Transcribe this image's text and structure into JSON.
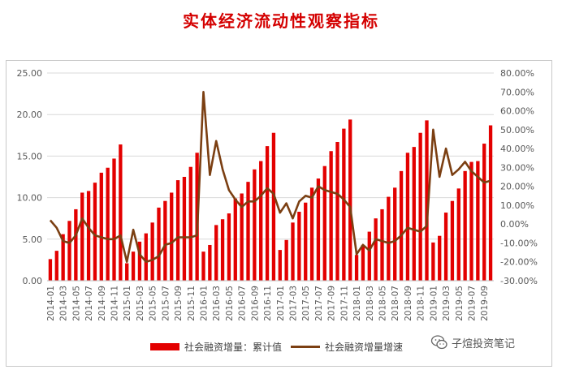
{
  "page": {
    "title": "实体经济流动性观察指标"
  },
  "watermark": {
    "text": "子煊投资笔记",
    "icon": "wechat-icon"
  },
  "colors": {
    "bar": "#e30000",
    "line": "#7b3f12",
    "title": "#d40000",
    "grid": "#d9d9d9",
    "axis_text": "#595959"
  },
  "chart_data": {
    "type": "bar",
    "legend": {
      "placement": "bottom",
      "bar_label": "社会融资增量：累计值",
      "line_label": "社会融资增量增速"
    },
    "grid": true,
    "y_left": {
      "lim": [
        0,
        25
      ],
      "ticks": [
        "0.00",
        "5.00",
        "10.00",
        "15.00",
        "20.00",
        "25.00"
      ]
    },
    "y_right": {
      "lim": [
        -30,
        80
      ],
      "ticks": [
        "-30.00%",
        "-20.00%",
        "-10.00%",
        "0.00%",
        "10.00%",
        "20.00%",
        "30.00%",
        "40.00%",
        "50.00%",
        "60.00%",
        "70.00%",
        "80.00%"
      ]
    },
    "x_tick_labels": [
      "2014-01",
      "2014-03",
      "2014-05",
      "2014-07",
      "2014-09",
      "2014-11",
      "2015-01",
      "2015-03",
      "2015-05",
      "2015-07",
      "2015-09",
      "2015-11",
      "2016-01",
      "2016-03",
      "2016-05",
      "2016-07",
      "2016-09",
      "2016-11",
      "2017-01",
      "2017-03",
      "2017-05",
      "2017-07",
      "2017-09",
      "2017-11",
      "2018-01",
      "2018-03",
      "2018-05",
      "2018-07",
      "2018-09",
      "2018-11",
      "2019-01",
      "2019-03",
      "2019-05",
      "2019-07",
      "2019-09"
    ],
    "series": [
      {
        "name": "社会融资增量：累计值",
        "axis": "left",
        "type": "bar",
        "values": [
          2.6,
          3.6,
          5.6,
          7.2,
          8.6,
          10.6,
          10.8,
          11.8,
          13.0,
          13.6,
          14.7,
          16.4,
          2.1,
          3.5,
          4.7,
          5.7,
          7.0,
          8.8,
          9.6,
          10.6,
          12.1,
          12.5,
          13.7,
          15.4,
          3.5,
          4.3,
          6.7,
          7.4,
          8.1,
          9.9,
          10.5,
          11.9,
          13.4,
          14.4,
          16.2,
          17.8,
          3.7,
          4.9,
          7.0,
          8.3,
          9.4,
          11.2,
          12.3,
          13.8,
          15.6,
          16.7,
          18.3,
          19.4,
          3.1,
          4.3,
          5.9,
          7.5,
          8.6,
          10.1,
          11.2,
          13.2,
          15.4,
          16.1,
          17.8,
          19.3,
          4.6,
          5.4,
          8.2,
          9.6,
          11.1,
          13.2,
          14.3,
          14.4,
          16.5,
          18.7
        ]
      },
      {
        "name": "社会融资增量增速",
        "axis": "right",
        "type": "line",
        "values": [
          2,
          -2,
          -9,
          -10,
          -6,
          3,
          -2,
          -6,
          -7,
          -8,
          -8,
          -6,
          -20,
          -3,
          -16,
          -20,
          -19,
          -17,
          -11,
          -10,
          -7,
          -7,
          -7,
          -6,
          70,
          26,
          44,
          29,
          18,
          13,
          9,
          12,
          12,
          15,
          19,
          16,
          6,
          11,
          3,
          12,
          15,
          14,
          20,
          18,
          17,
          16,
          13,
          9,
          -16,
          -11,
          -14,
          -8,
          -9,
          -10,
          -9,
          -6,
          -2,
          -3,
          -4,
          -1,
          50,
          25,
          40,
          26,
          29,
          33,
          28,
          25,
          22,
          23
        ]
      }
    ]
  }
}
